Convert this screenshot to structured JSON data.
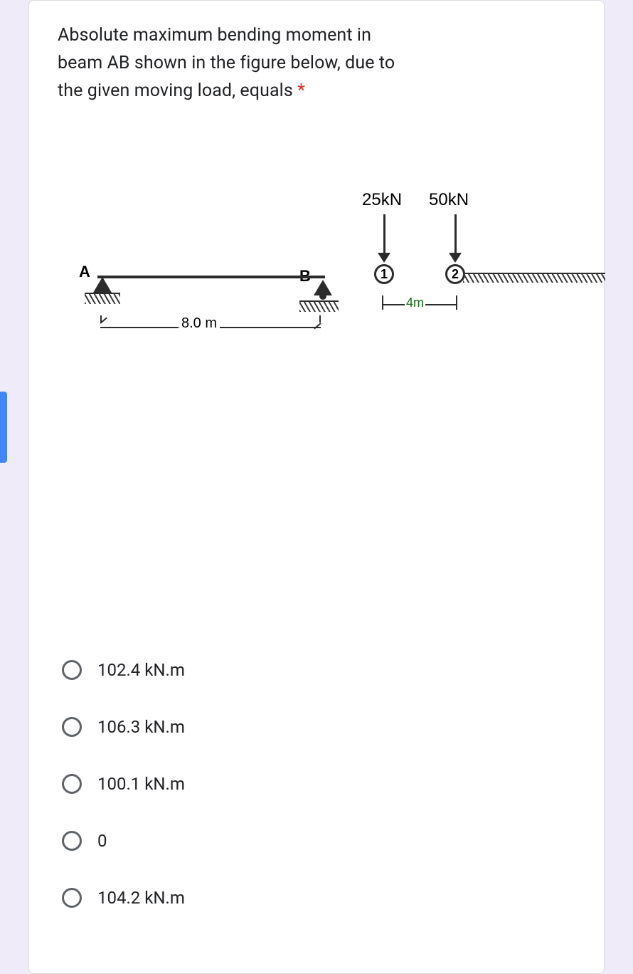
{
  "question": {
    "text_line1": "Absolute maximum bending moment in",
    "text_line2": "beam AB shown in the figure below, due to",
    "text_line3": "the given moving load, equals ",
    "required_mark": "*"
  },
  "figure": {
    "beam": {
      "labelA": "A",
      "labelB": "B",
      "span_label": "8.0 m"
    },
    "loads": {
      "load1_label": "25kN",
      "load2_label": "50kN",
      "wheel1": "1",
      "wheel2": "2",
      "spacing_label": "4m"
    }
  },
  "options": [
    {
      "label": "102.4 kN.m"
    },
    {
      "label": "106.3 kN.m"
    },
    {
      "label": "100.1 kN.m"
    },
    {
      "label": "0"
    },
    {
      "label": "104.2 kN.m"
    }
  ],
  "colors": {
    "accent": "#4285f4",
    "card_bg": "#ffffff",
    "page_bg": "#f0ebf8",
    "text": "#202124",
    "required": "#d93025",
    "radio_border": "#5f6368"
  }
}
